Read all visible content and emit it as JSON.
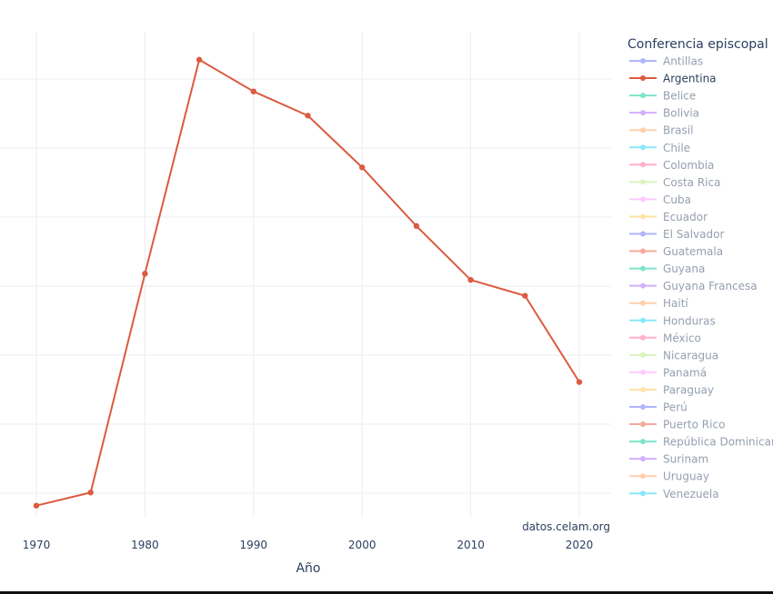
{
  "chart_data": {
    "type": "line",
    "title": "",
    "xlabel": "Año",
    "ylabel": "",
    "x_ticks": [
      1970,
      1980,
      1990,
      2000,
      2010,
      2020
    ],
    "x_tick_labels": [
      "1970",
      "1980",
      "1990",
      "2000",
      "2010",
      "2020"
    ],
    "xlim": [
      1967,
      2023
    ],
    "ylim": [
      0.55,
      7.7
    ],
    "y_gridlines": [
      1,
      2,
      3,
      4,
      5,
      6,
      7
    ],
    "y_units_note_hidden": true,
    "grid": true,
    "legend_placement": "right",
    "legend_title": "Conferencia episcopal",
    "series": [
      {
        "name": "Argentina",
        "color": "#dc5a40",
        "active": true,
        "x": [
          1970,
          1975,
          1980,
          1985,
          1990,
          1995,
          2000,
          2005,
          2010,
          2015,
          2020
        ],
        "y": [
          0.82,
          1.01,
          4.18,
          7.28,
          6.82,
          6.47,
          5.72,
          4.87,
          4.09,
          3.86,
          2.61
        ]
      }
    ],
    "legend": [
      {
        "name": "Antillas",
        "color": "#636efa",
        "active": false
      },
      {
        "name": "Argentina",
        "color": "#dc5a40",
        "active": true
      },
      {
        "name": "Belice",
        "color": "#00cc96",
        "active": false
      },
      {
        "name": "Bolivia",
        "color": "#ab63fa",
        "active": false
      },
      {
        "name": "Brasil",
        "color": "#FFA15A",
        "active": false
      },
      {
        "name": "Chile",
        "color": "#19d3f3",
        "active": false
      },
      {
        "name": "Colombia",
        "color": "#FF6692",
        "active": false
      },
      {
        "name": "Costa Rica",
        "color": "#B6E880",
        "active": false
      },
      {
        "name": "Cuba",
        "color": "#FF97FF",
        "active": false
      },
      {
        "name": "Ecuador",
        "color": "#FECB52",
        "active": false
      },
      {
        "name": "El Salvador",
        "color": "#636efa",
        "active": false
      },
      {
        "name": "Guatemala",
        "color": "#EF553B",
        "active": false
      },
      {
        "name": "Guyana",
        "color": "#00cc96",
        "active": false
      },
      {
        "name": "Guyana Francesa",
        "color": "#ab63fa",
        "active": false
      },
      {
        "name": "Haití",
        "color": "#FFA15A",
        "active": false
      },
      {
        "name": "Honduras",
        "color": "#19d3f3",
        "active": false
      },
      {
        "name": "México",
        "color": "#FF6692",
        "active": false
      },
      {
        "name": "Nicaragua",
        "color": "#B6E880",
        "active": false
      },
      {
        "name": "Panamá",
        "color": "#FF97FF",
        "active": false
      },
      {
        "name": "Paraguay",
        "color": "#FECB52",
        "active": false
      },
      {
        "name": "Perú",
        "color": "#636efa",
        "active": false
      },
      {
        "name": "Puerto Rico",
        "color": "#EF553B",
        "active": false
      },
      {
        "name": "República Dominicana",
        "color": "#00cc96",
        "active": false
      },
      {
        "name": "Surinam",
        "color": "#ab63fa",
        "active": false
      },
      {
        "name": "Uruguay",
        "color": "#FFA15A",
        "active": false
      },
      {
        "name": "Venezuela",
        "color": "#19d3f3",
        "active": false
      }
    ],
    "annotation": "datos.celam.org"
  }
}
